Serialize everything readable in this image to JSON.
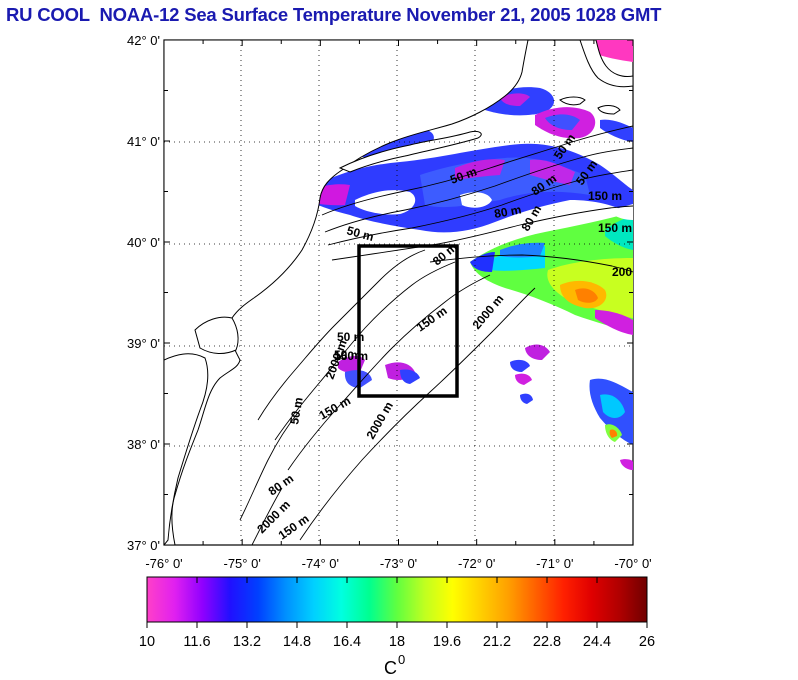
{
  "title": "RU COOL  NOAA-12 Sea Surface Temperature November 21, 2005 1028 GMT",
  "lat_labels": [
    "42° 0'",
    "41° 0'",
    "40° 0'",
    "39° 0'",
    "38° 0'",
    "37° 0'"
  ],
  "lon_labels": [
    "-76° 0'",
    "-75° 0'",
    "-74° 0'",
    "-73° 0'",
    "-72° 0'",
    "-71° 0'",
    "-70° 0'"
  ],
  "contour_labels": [
    "50 m",
    "50 m",
    "80 m",
    "150 m",
    "80 m",
    "50 m",
    "80 m",
    "150 m",
    "2000 m",
    "200",
    "50 m",
    "80 m",
    "150 m",
    "2000 m",
    "50 m",
    "150 m",
    "2000 m",
    "50 m",
    "80 m",
    "150 m",
    "2000 m",
    "150 m",
    "50 m"
  ],
  "colorbar": {
    "tick_labels": [
      "10",
      "11.6",
      "13.2",
      "14.8",
      "16.4",
      "18",
      "19.6",
      "21.2",
      "22.8",
      "24.4",
      "26"
    ],
    "unit": "C",
    "unit_superscript": "0",
    "colors": [
      "#ff40c8",
      "#e020f0",
      "#9000ff",
      "#2010ff",
      "#0040ff",
      "#0090ff",
      "#00d0ff",
      "#00ffe0",
      "#00ff90",
      "#60ff40",
      "#c0ff20",
      "#ffff00",
      "#ffd000",
      "#ffa000",
      "#ff6000",
      "#ff2000",
      "#e00000",
      "#b00000",
      "#700000"
    ]
  },
  "study_box": {
    "lon_min": -73.5,
    "lon_max": -72.2,
    "lat_min": 38.5,
    "lat_max": 40.0
  }
}
